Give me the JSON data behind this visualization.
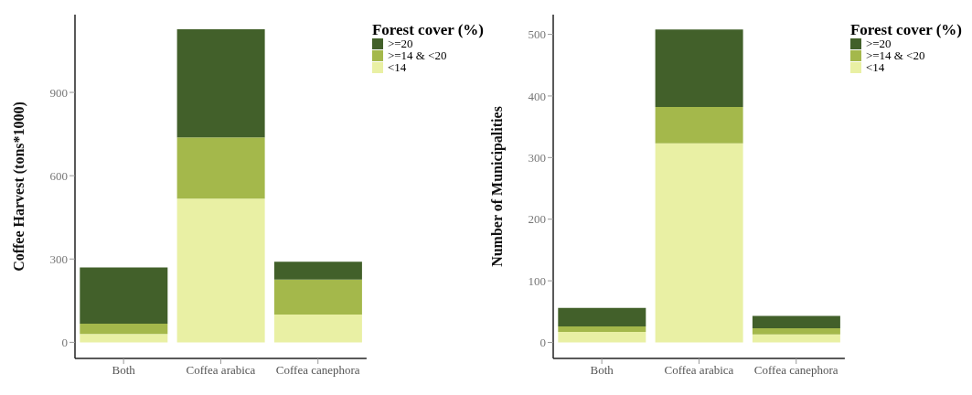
{
  "chart_data": [
    {
      "type": "bar",
      "stacked": true,
      "ylabel": "Coffee Harvest (tons*1000)",
      "legend_title": "Forest cover (%)",
      "legend": "top right",
      "grid": false,
      "categories": [
        "Both",
        "Coffea arabica",
        "Coffea canephora"
      ],
      "ylim": [
        -58,
        1180
      ],
      "yticks": [
        0,
        300,
        600,
        900
      ],
      "series": [
        {
          "name": "<14",
          "color": "#e9f0a4",
          "values": [
            30,
            517,
            100
          ]
        },
        {
          "name": ">=14 & <20",
          "color": "#a4b84b",
          "values": [
            37,
            221,
            126
          ]
        },
        {
          "name": ">=20",
          "color": "#42602a",
          "values": [
            203,
            389,
            64
          ]
        }
      ]
    },
    {
      "type": "bar",
      "stacked": true,
      "ylabel": "Number of Municipalities",
      "legend_title": "Forest cover (%)",
      "legend": "top right",
      "grid": false,
      "categories": [
        "Both",
        "Coffea arabica",
        "Coffea canephora"
      ],
      "ylim": [
        -26,
        532
      ],
      "yticks": [
        0,
        100,
        200,
        300,
        400,
        500
      ],
      "series": [
        {
          "name": "<14",
          "color": "#e9f0a4",
          "values": [
            17,
            323,
            13
          ]
        },
        {
          "name": ">=14 & <20",
          "color": "#a4b84b",
          "values": [
            9,
            59,
            10
          ]
        },
        {
          "name": ">=20",
          "color": "#42602a",
          "values": [
            30,
            126,
            20
          ]
        }
      ]
    }
  ]
}
